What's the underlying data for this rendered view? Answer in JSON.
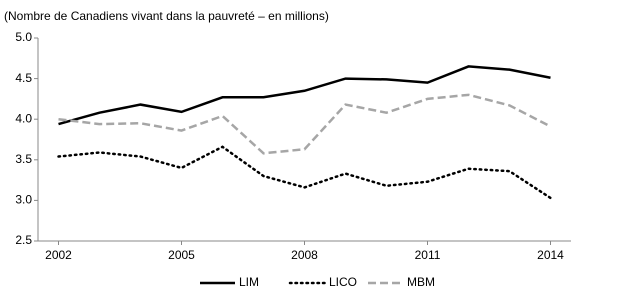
{
  "chart_data": {
    "type": "line",
    "title": "(Nombre de Canadiens vivant dans la pauvreté – en millions)",
    "x": [
      2002,
      2003,
      2004,
      2005,
      2006,
      2007,
      2008,
      2009,
      2010,
      2011,
      2012,
      2013,
      2014
    ],
    "xlim": [
      2001.5,
      2014.5
    ],
    "xticks": [
      2002,
      2005,
      2008,
      2011,
      2014
    ],
    "ylim": [
      2.5,
      5.0
    ],
    "yticks": [
      {
        "value": 5.0,
        "label": "5.0"
      },
      4.5,
      {
        "value": 4.0,
        "label": "4.0"
      },
      3.5,
      {
        "value": 3.0,
        "label": "3.0"
      },
      2.5
    ],
    "grid": false,
    "legend": "bottom",
    "series": [
      {
        "name": "LIM",
        "color": "#000000",
        "dash": "solid",
        "values": [
          3.94,
          4.08,
          4.18,
          4.09,
          4.27,
          4.27,
          4.35,
          4.5,
          4.49,
          4.45,
          4.65,
          4.61,
          4.51
        ]
      },
      {
        "name": "LICO",
        "color": "#000000",
        "dash": "dotted",
        "values": [
          3.54,
          3.59,
          3.54,
          3.4,
          3.66,
          3.3,
          3.16,
          3.33,
          3.18,
          3.23,
          3.39,
          3.36,
          3.03
        ]
      },
      {
        "name": "MBM",
        "color": "#a6a6a6",
        "dash": "dashed",
        "values": [
          4.0,
          3.94,
          3.95,
          3.86,
          4.04,
          3.58,
          3.63,
          4.18,
          4.08,
          4.25,
          4.3,
          4.17,
          3.91
        ]
      }
    ]
  }
}
